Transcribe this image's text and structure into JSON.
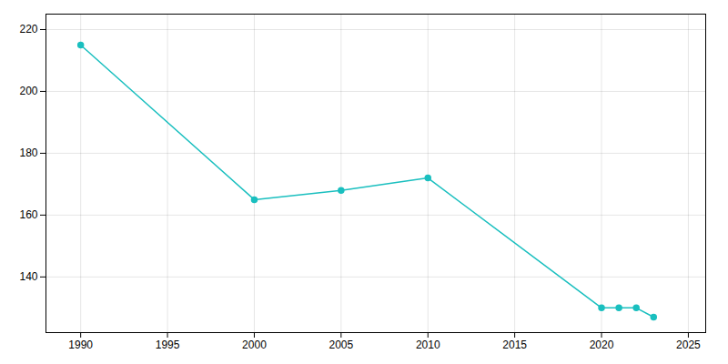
{
  "chart_data": {
    "type": "line",
    "x": [
      1990,
      2000,
      2005,
      2010,
      2020,
      2021,
      2022,
      2023
    ],
    "values": [
      215,
      165,
      168,
      172,
      130,
      130,
      130,
      127
    ],
    "color": "#1ABFBF",
    "marker": "circle",
    "xlim": [
      1988,
      2026
    ],
    "ylim": [
      122,
      225
    ],
    "xticks": [
      1990,
      1995,
      2000,
      2005,
      2010,
      2015,
      2020,
      2025
    ],
    "yticks": [
      140,
      160,
      180,
      200,
      220
    ],
    "grid": true
  }
}
